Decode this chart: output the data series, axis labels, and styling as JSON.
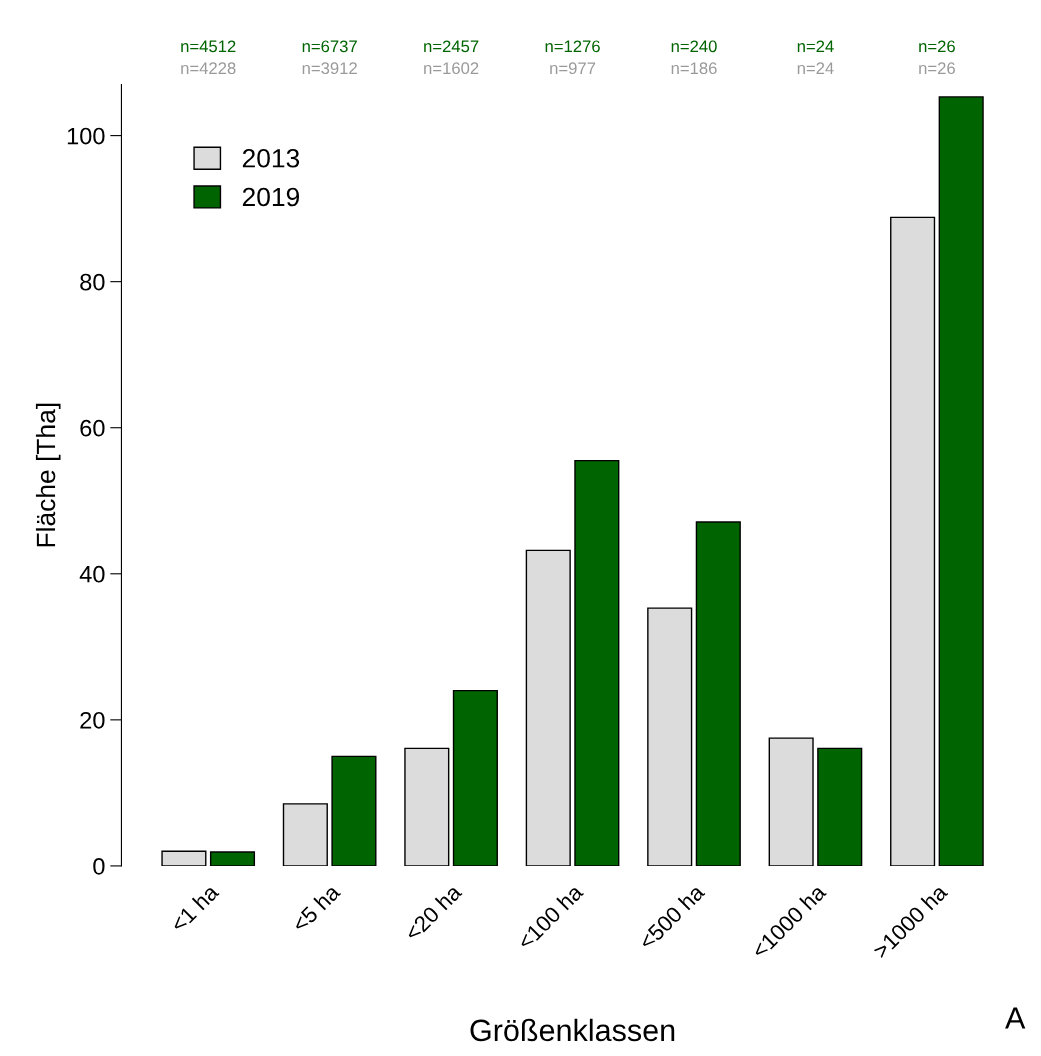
{
  "chart_data": {
    "type": "bar",
    "xlabel": "Größenklassen",
    "ylabel": "Fläche [Tha]",
    "categories": [
      "<1 ha",
      "<5 ha",
      "<20 ha",
      "<100 ha",
      "<500 ha",
      "<1000 ha",
      ">1000 ha"
    ],
    "series": [
      {
        "name": "2013",
        "color": "#dcdcdc",
        "values": [
          2.0,
          8.5,
          16.1,
          43.2,
          35.3,
          17.5,
          88.8
        ]
      },
      {
        "name": "2019",
        "color": "#006400",
        "values": [
          1.9,
          15.0,
          24.0,
          55.5,
          47.1,
          16.1,
          105.3
        ]
      }
    ],
    "ylim": [
      0,
      107
    ],
    "yticks": [
      0,
      20,
      40,
      60,
      80,
      100
    ],
    "grid": false,
    "legend": "top left",
    "annotations": [
      "n=4512",
      "n=6737",
      "n=2457",
      "n=1276",
      "n=240",
      "n=24",
      "n=26",
      "n=4228",
      "n=3912",
      "n=1602",
      "n=977",
      "n=186",
      "n=24",
      "n=26",
      "A"
    ]
  }
}
